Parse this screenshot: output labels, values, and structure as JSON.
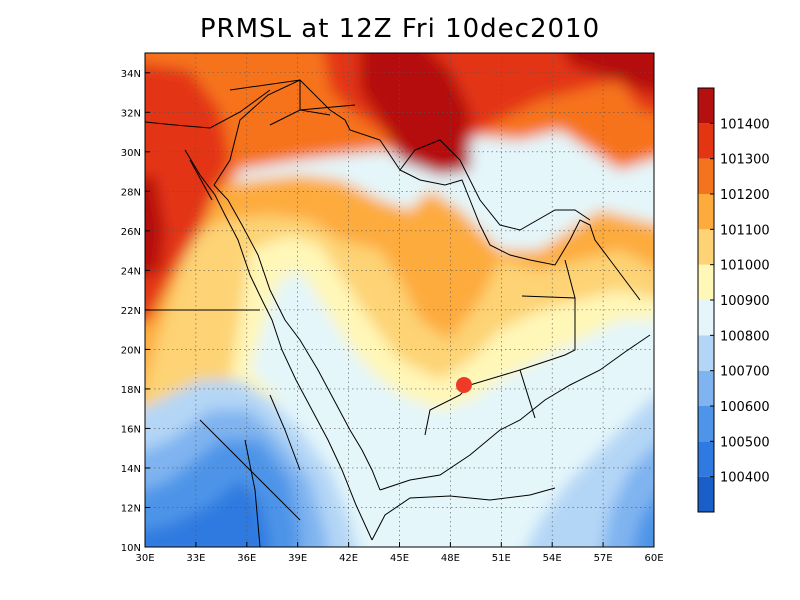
{
  "title": "PRMSL at 12Z Fri 10dec2010",
  "map": {
    "lon_range": [
      30,
      60
    ],
    "lat_range": [
      10,
      35
    ],
    "x_ticks": [
      "30E",
      "33E",
      "36E",
      "39E",
      "42E",
      "45E",
      "48E",
      "51E",
      "54E",
      "57E",
      "60E"
    ],
    "y_ticks": [
      "10N",
      "12N",
      "14N",
      "16N",
      "18N",
      "20N",
      "22N",
      "24N",
      "26N",
      "28N",
      "30N",
      "32N",
      "34N"
    ],
    "grid": true
  },
  "colorbar": {
    "labels": [
      "100400",
      "100500",
      "100600",
      "100700",
      "100800",
      "100900",
      "101000",
      "101100",
      "101200",
      "101300",
      "101400"
    ],
    "colors": [
      "#1a5fc8",
      "#2f7ae0",
      "#4e94e8",
      "#7fb4f0",
      "#b4d6f6",
      "#e4f6fa",
      "#fff7b8",
      "#fdd375",
      "#fdab3c",
      "#f6731e",
      "#e33512",
      "#b51010"
    ]
  },
  "marker": {
    "lon": 48.8,
    "lat": 18.2,
    "color": "#f03a28"
  }
}
